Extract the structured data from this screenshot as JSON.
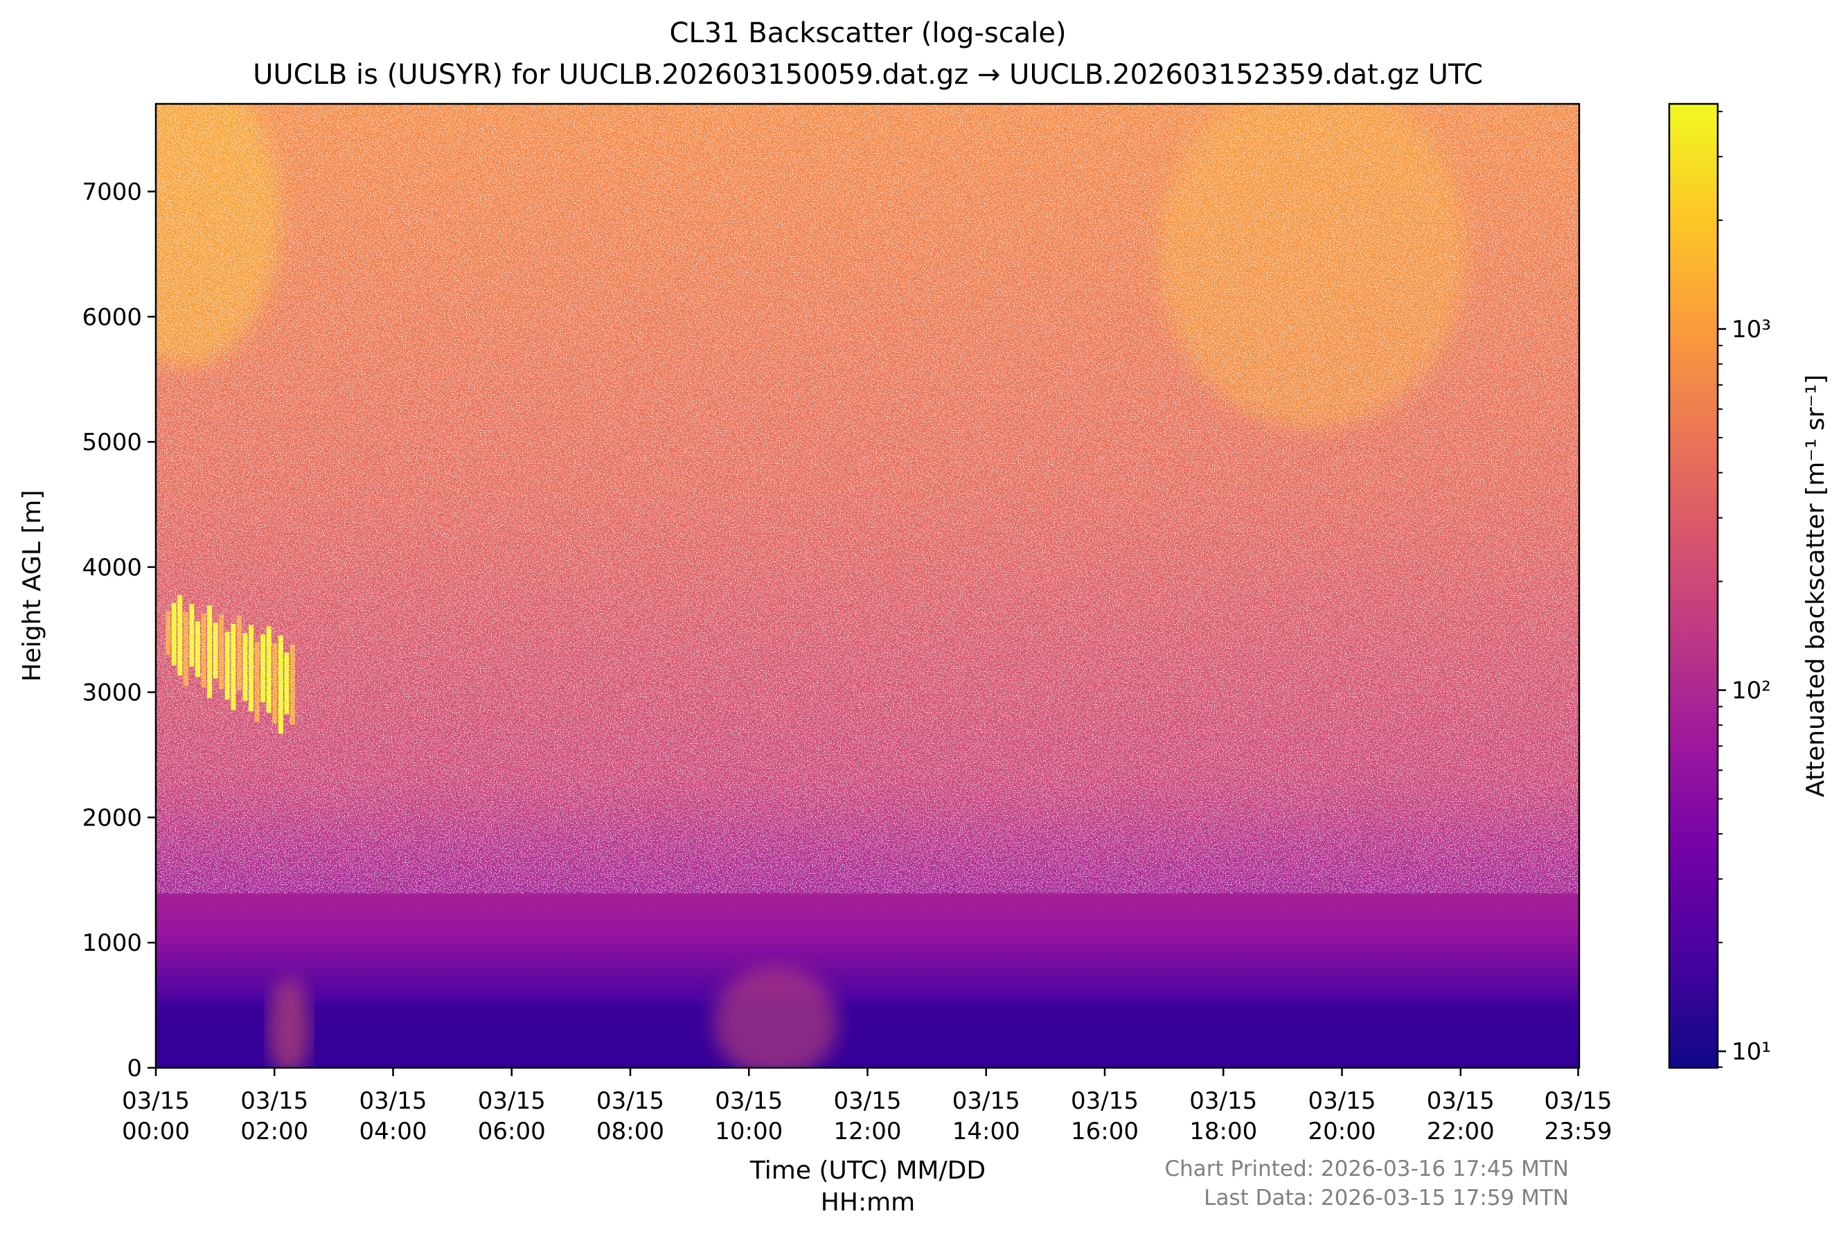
{
  "colors": {
    "cmap": [
      "#0d0887",
      "#46039f",
      "#7201a8",
      "#9c179e",
      "#bd3786",
      "#d8576b",
      "#ed7953",
      "#fb9f3a",
      "#fdca26",
      "#f0f921"
    ],
    "note": "#808080"
  },
  "chart_data": {
    "type": "heatmap",
    "title": "CL31 Backscatter (log-scale)",
    "subtitle": "UUCLB is (UUSYR) for UUCLB.202603150059.dat.gz → UUCLB.202603152359.dat.gz UTC",
    "xlabel_line1": "Time (UTC) MM/DD",
    "xlabel_line2": "HH:mm",
    "ylabel": "Height AGL [m]",
    "x_range": [
      "03/15 00:00",
      "03/15 23:59"
    ],
    "y_range": [
      0,
      7700
    ],
    "x_ticks": [
      {
        "date": "03/15",
        "time": "00:00",
        "hour": 0
      },
      {
        "date": "03/15",
        "time": "02:00",
        "hour": 2
      },
      {
        "date": "03/15",
        "time": "04:00",
        "hour": 4
      },
      {
        "date": "03/15",
        "time": "06:00",
        "hour": 6
      },
      {
        "date": "03/15",
        "time": "08:00",
        "hour": 8
      },
      {
        "date": "03/15",
        "time": "10:00",
        "hour": 10
      },
      {
        "date": "03/15",
        "time": "12:00",
        "hour": 12
      },
      {
        "date": "03/15",
        "time": "14:00",
        "hour": 14
      },
      {
        "date": "03/15",
        "time": "16:00",
        "hour": 16
      },
      {
        "date": "03/15",
        "time": "18:00",
        "hour": 18
      },
      {
        "date": "03/15",
        "time": "20:00",
        "hour": 20
      },
      {
        "date": "03/15",
        "time": "22:00",
        "hour": 22
      },
      {
        "date": "03/15",
        "time": "23:59",
        "hour": 23.983
      }
    ],
    "y_ticks": [
      {
        "label": "0",
        "value": 0
      },
      {
        "label": "1000",
        "value": 1000
      },
      {
        "label": "2000",
        "value": 2000
      },
      {
        "label": "3000",
        "value": 3000
      },
      {
        "label": "4000",
        "value": 4000
      },
      {
        "label": "5000",
        "value": 5000
      },
      {
        "label": "6000",
        "value": 6000
      },
      {
        "label": "7000",
        "value": 7000
      }
    ],
    "colorbar": {
      "label": "Attenuated backscatter [m⁻¹ sr⁻¹]",
      "scale": "log",
      "range": [
        9,
        4200
      ],
      "ticks": [
        {
          "label": "10¹",
          "value": 10
        },
        {
          "label": "10²",
          "value": 100
        },
        {
          "label": "10³",
          "value": 1000
        }
      ]
    },
    "grid": false,
    "features": [
      {
        "name": "cloud layer",
        "hour_range": [
          0.2,
          2.3
        ],
        "height_range": [
          2750,
          3700
        ],
        "level": 4000
      },
      {
        "name": "surface boundary layer",
        "hour_range": [
          0,
          24
        ],
        "height_range": [
          0,
          500
        ],
        "level": 15
      },
      {
        "name": "near-surface aerosol plume",
        "hour_range": [
          1.9,
          2.6
        ],
        "height_range": [
          0,
          800
        ],
        "level": 300
      },
      {
        "name": "near-surface aerosol plume",
        "hour_range": [
          9.4,
          11.5
        ],
        "height_range": [
          0,
          900
        ],
        "level": 200
      }
    ]
  },
  "footer": {
    "printed": "Chart Printed: 2026-03-16 17:45 MTN",
    "last_data": "Last Data: 2026-03-15 17:59 MTN"
  }
}
